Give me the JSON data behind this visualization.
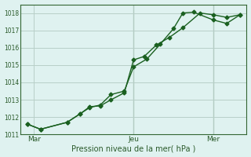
{
  "xlabel": "Pression niveau de la mer( hPa )",
  "background_color": "#dff2f0",
  "grid_color": "#b8cfc8",
  "line_color": "#1a6020",
  "ylim": [
    1011.0,
    1018.5
  ],
  "xlim": [
    0,
    17
  ],
  "xtick_labels": [
    "Mar",
    "Jeu",
    "Mer"
  ],
  "xtick_positions": [
    1.0,
    8.5,
    14.5
  ],
  "ytick_positions": [
    1011,
    1012,
    1013,
    1014,
    1015,
    1016,
    1017,
    1018
  ],
  "vline_positions": [
    8.5,
    14.5
  ],
  "line1_x": [
    0.5,
    1.5,
    3.5,
    4.5,
    5.2,
    6.0,
    6.8,
    7.8,
    8.5,
    9.3,
    10.2,
    11.2,
    12.2,
    13.5,
    14.5,
    15.5,
    16.5
  ],
  "line1_y": [
    1011.6,
    1011.3,
    1011.7,
    1012.2,
    1012.6,
    1012.65,
    1013.0,
    1013.4,
    1015.3,
    1015.5,
    1016.15,
    1016.6,
    1017.15,
    1018.0,
    1017.9,
    1017.75,
    1017.9
  ],
  "line2_x": [
    0.5,
    1.5,
    3.5,
    4.5,
    5.2,
    6.0,
    6.8,
    7.8,
    8.5,
    9.5,
    10.5,
    11.5,
    12.2,
    13.0,
    14.5,
    15.5,
    16.5
  ],
  "line2_y": [
    1011.6,
    1011.3,
    1011.7,
    1012.2,
    1012.55,
    1012.7,
    1013.3,
    1013.5,
    1014.9,
    1015.35,
    1016.2,
    1017.1,
    1018.0,
    1018.05,
    1017.6,
    1017.4,
    1017.9
  ],
  "marker_style": "D",
  "marker_size": 2.5,
  "line_width": 1.0
}
